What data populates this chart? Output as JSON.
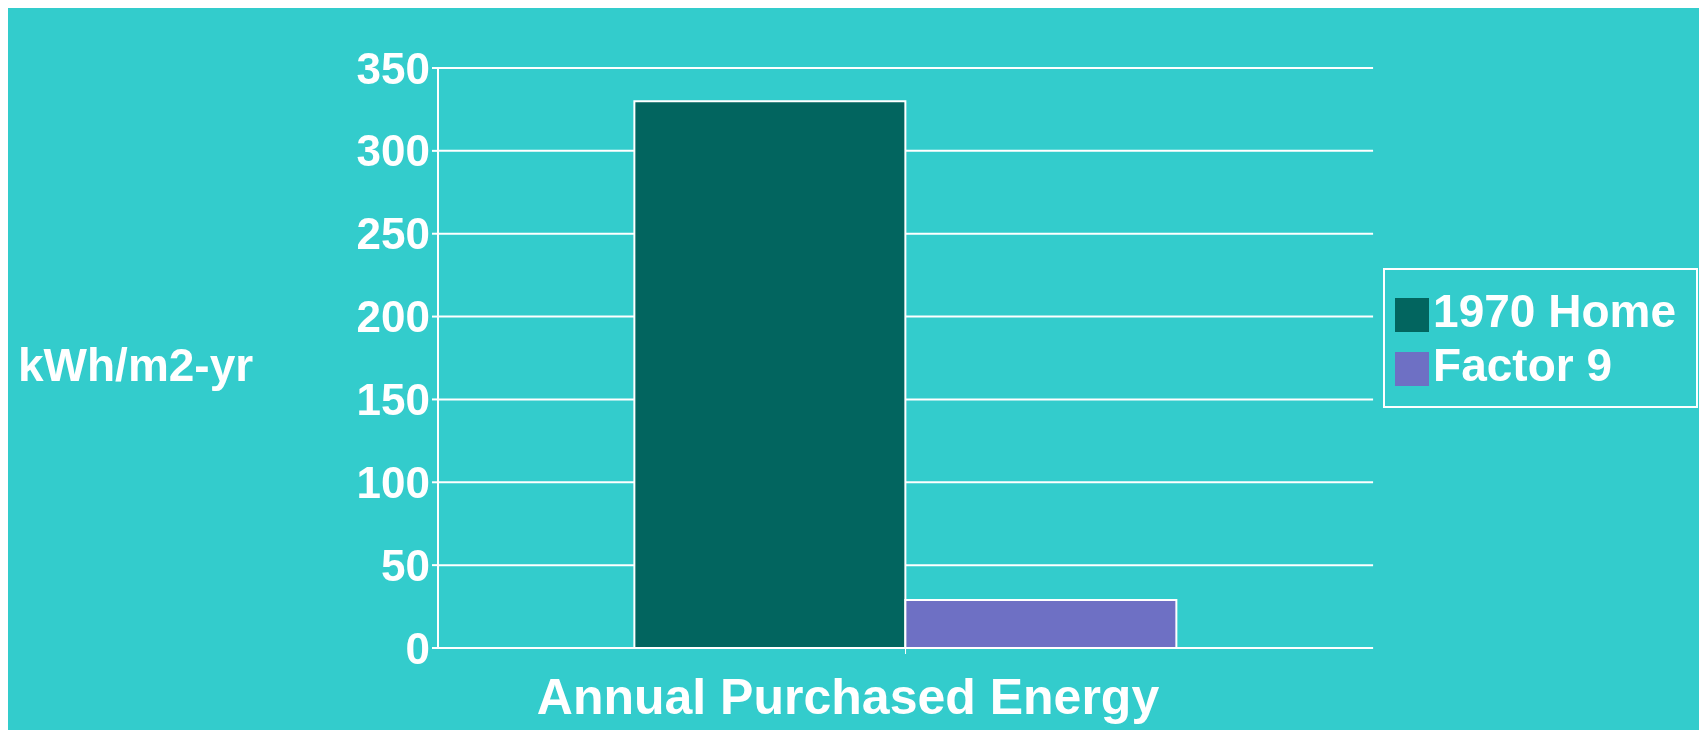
{
  "chart_data": {
    "type": "bar",
    "categories": [
      null
    ],
    "series": [
      {
        "name": "1970 Home",
        "color": "#02655f",
        "values": [
          330
        ]
      },
      {
        "name": "Factor 9",
        "color": "#6e70c4",
        "values": [
          29
        ]
      }
    ],
    "xlabel": "Annual Purchased Energy",
    "ylabel": "kWh/m2-yr",
    "ylim": [
      0,
      350
    ],
    "yticks": [
      0,
      50,
      100,
      150,
      200,
      250,
      300,
      350
    ],
    "grid": "y",
    "legend": "right"
  }
}
